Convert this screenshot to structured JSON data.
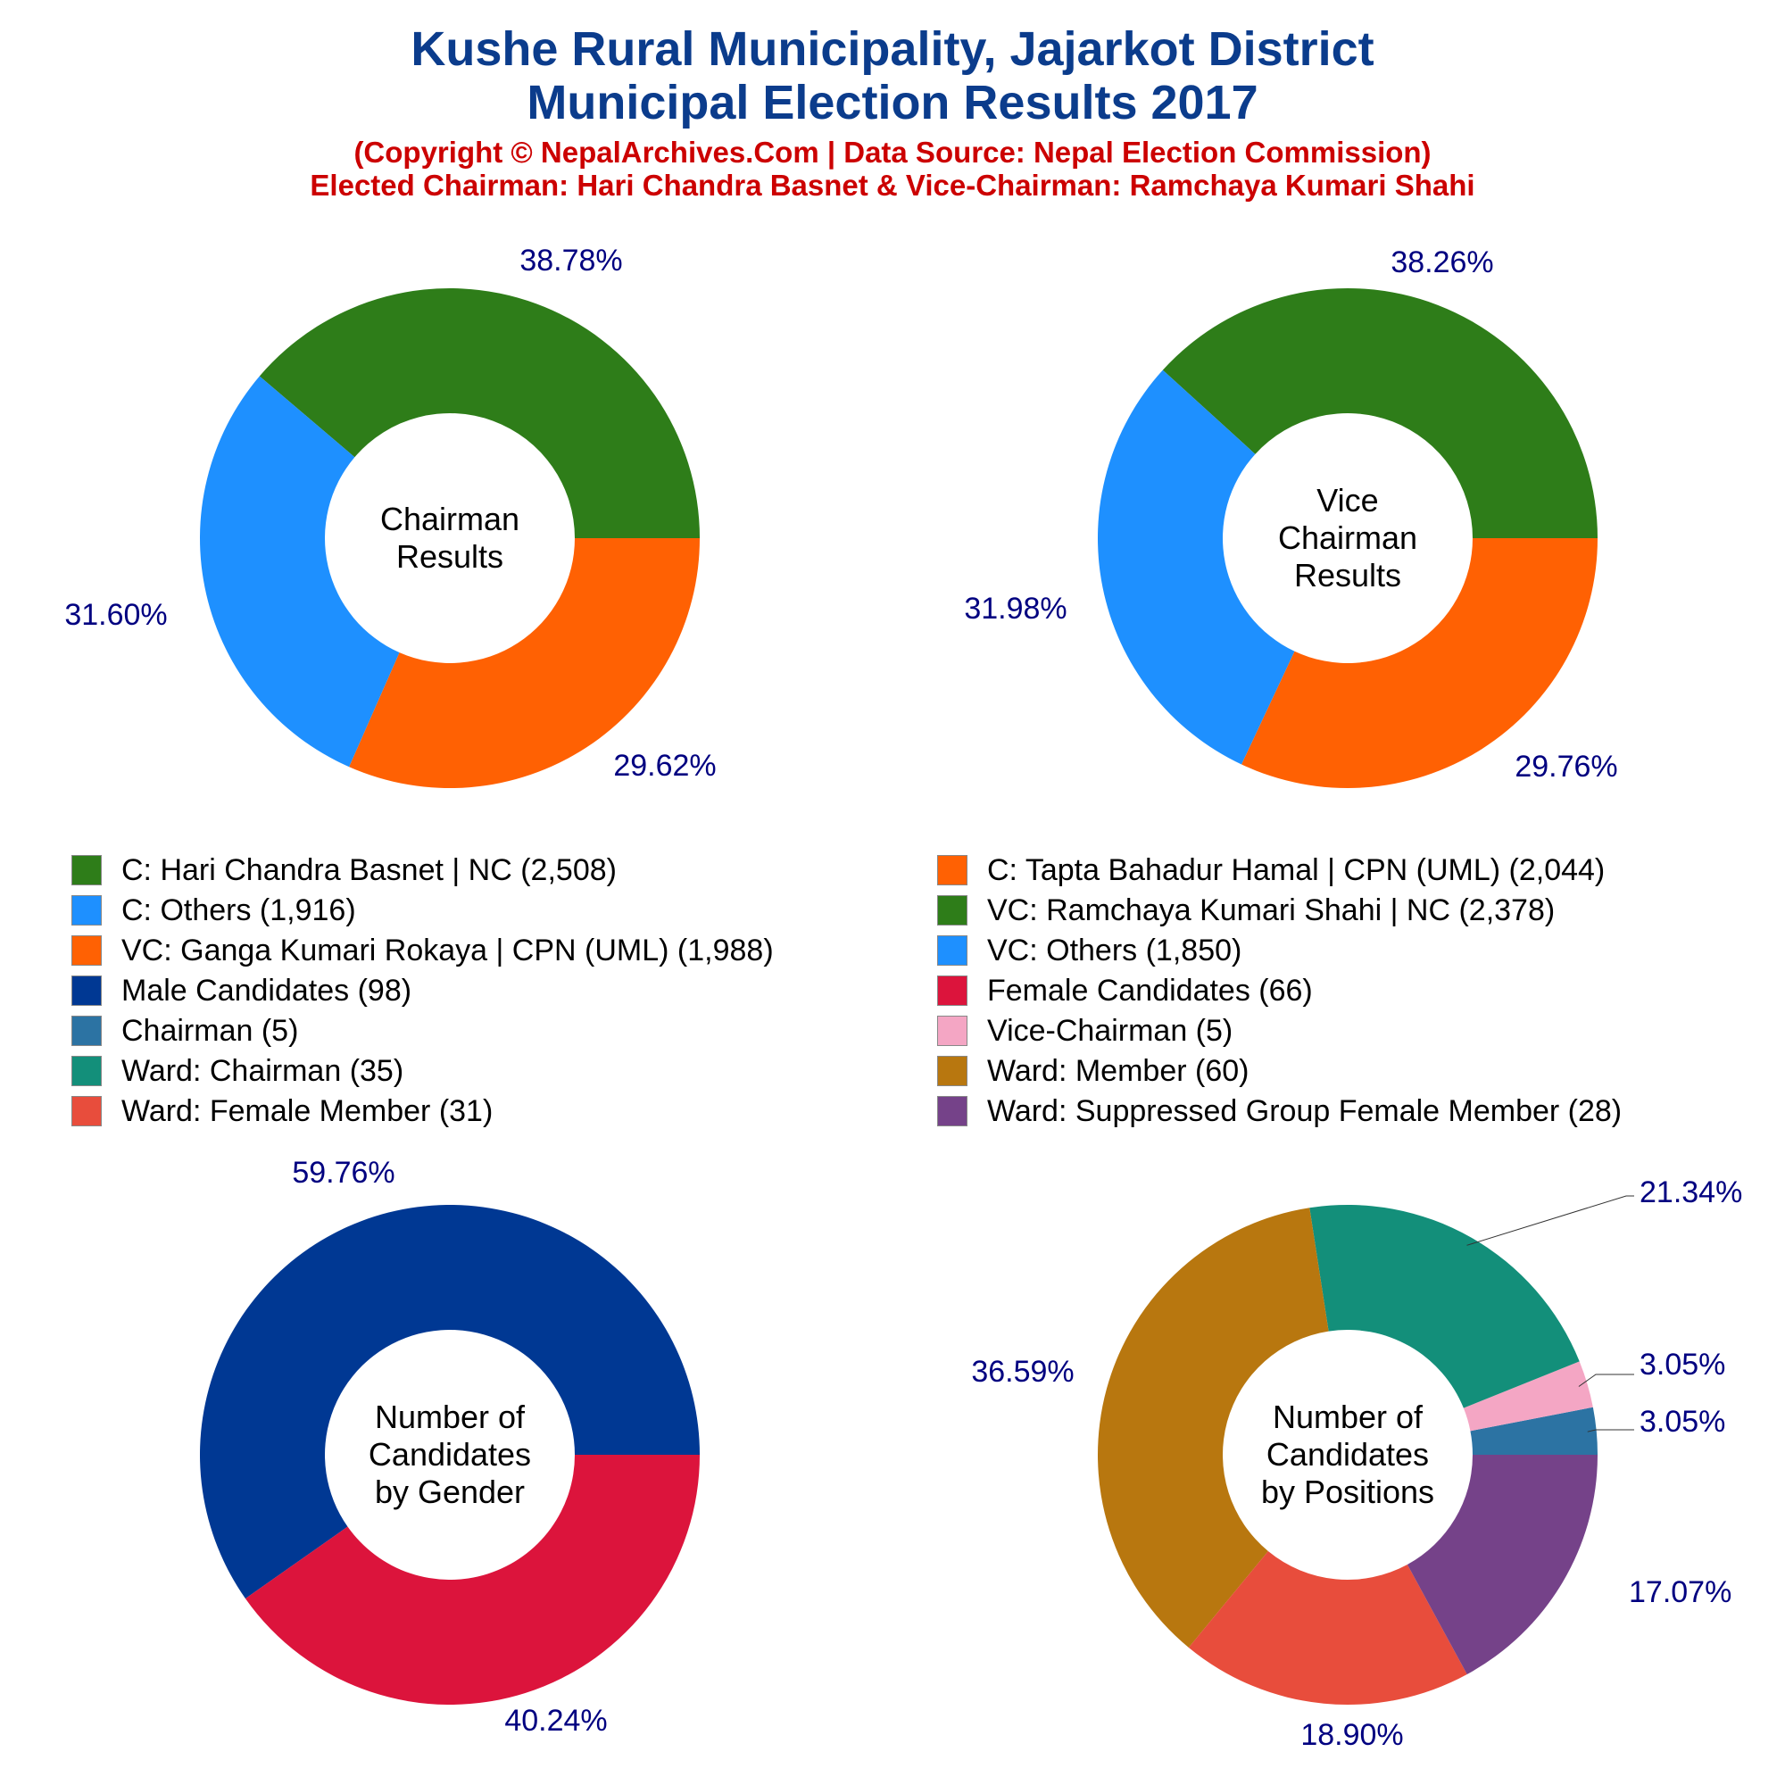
{
  "header": {
    "title_line1": "Kushe Rural Municipality, Jajarkot District",
    "title_line2": "Municipal Election Results 2017",
    "subtitle_line1": "(Copyright © NepalArchives.Com | Data Source: Nepal Election Commission)",
    "subtitle_line2": "Elected Chairman: Hari Chandra Basnet & Vice-Chairman: Ramchaya Kumari Shahi"
  },
  "legend": [
    {
      "label": "C: Hari Chandra Basnet | NC (2,508)",
      "color": "#2e7d19"
    },
    {
      "label": "C: Tapta Bahadur Hamal | CPN (UML) (2,044)",
      "color": "#ff6103"
    },
    {
      "label": "C: Others (1,916)",
      "color": "#1e90ff"
    },
    {
      "label": "VC: Ramchaya Kumari Shahi | NC (2,378)",
      "color": "#2e7d19"
    },
    {
      "label": "VC: Ganga Kumari Rokaya | CPN (UML) (1,988)",
      "color": "#ff6103"
    },
    {
      "label": "VC: Others (1,850)",
      "color": "#1e90ff"
    },
    {
      "label": "Male Candidates (98)",
      "color": "#003893"
    },
    {
      "label": "Female Candidates (66)",
      "color": "#dc143c"
    },
    {
      "label": "Chairman (5)",
      "color": "#2c73a3"
    },
    {
      "label": "Vice-Chairman (5)",
      "color": "#f4a6c4"
    },
    {
      "label": "Ward: Chairman (35)",
      "color": "#138f7a"
    },
    {
      "label": "Ward: Member (60)",
      "color": "#b8770f"
    },
    {
      "label": "Ward: Female Member (31)",
      "color": "#e84d3c"
    },
    {
      "label": "Ward: Suppressed Group Female Member (28)",
      "color": "#754289"
    }
  ],
  "chart_data": [
    {
      "type": "pie",
      "center_label": [
        "Chairman",
        "Results"
      ],
      "slices": [
        {
          "name": "C: Hari Chandra Basnet | NC",
          "value": 2508,
          "pct_label": "38.78%",
          "color": "#2e7d19"
        },
        {
          "name": "C: Others",
          "value": 1916,
          "pct_label": "29.62%",
          "color": "#1e90ff"
        },
        {
          "name": "C: Tapta Bahadur Hamal | CPN (UML)",
          "value": 2044,
          "pct_label": "31.60%",
          "color": "#ff6103"
        }
      ]
    },
    {
      "type": "pie",
      "center_label": [
        "Vice",
        "Chairman",
        "Results"
      ],
      "slices": [
        {
          "name": "VC: Ramchaya Kumari Shahi | NC",
          "value": 2378,
          "pct_label": "38.26%",
          "color": "#2e7d19"
        },
        {
          "name": "VC: Others",
          "value": 1850,
          "pct_label": "29.76%",
          "color": "#1e90ff"
        },
        {
          "name": "VC: Ganga Kumari Rokaya | CPN (UML)",
          "value": 1988,
          "pct_label": "31.98%",
          "color": "#ff6103"
        }
      ]
    },
    {
      "type": "pie",
      "center_label": [
        "Number of",
        "Candidates",
        "by Gender"
      ],
      "slices": [
        {
          "name": "Male Candidates",
          "value": 98,
          "pct_label": "59.76%",
          "color": "#003893"
        },
        {
          "name": "Female Candidates",
          "value": 66,
          "pct_label": "40.24%",
          "color": "#dc143c"
        }
      ]
    },
    {
      "type": "pie",
      "center_label": [
        "Number of",
        "Candidates",
        "by Positions"
      ],
      "slices": [
        {
          "name": "Chairman",
          "value": 5,
          "pct_label": "3.05%",
          "color": "#2c73a3"
        },
        {
          "name": "Vice-Chairman",
          "value": 5,
          "pct_label": "3.05%",
          "color": "#f4a6c4"
        },
        {
          "name": "Ward: Chairman",
          "value": 35,
          "pct_label": "21.34%",
          "color": "#138f7a"
        },
        {
          "name": "Ward: Member",
          "value": 60,
          "pct_label": "36.59%",
          "color": "#b8770f"
        },
        {
          "name": "Ward: Female Member",
          "value": 31,
          "pct_label": "18.90%",
          "color": "#e84d3c"
        },
        {
          "name": "Ward: Suppressed Group Female Member",
          "value": 28,
          "pct_label": "17.07%",
          "color": "#754289"
        }
      ]
    }
  ]
}
